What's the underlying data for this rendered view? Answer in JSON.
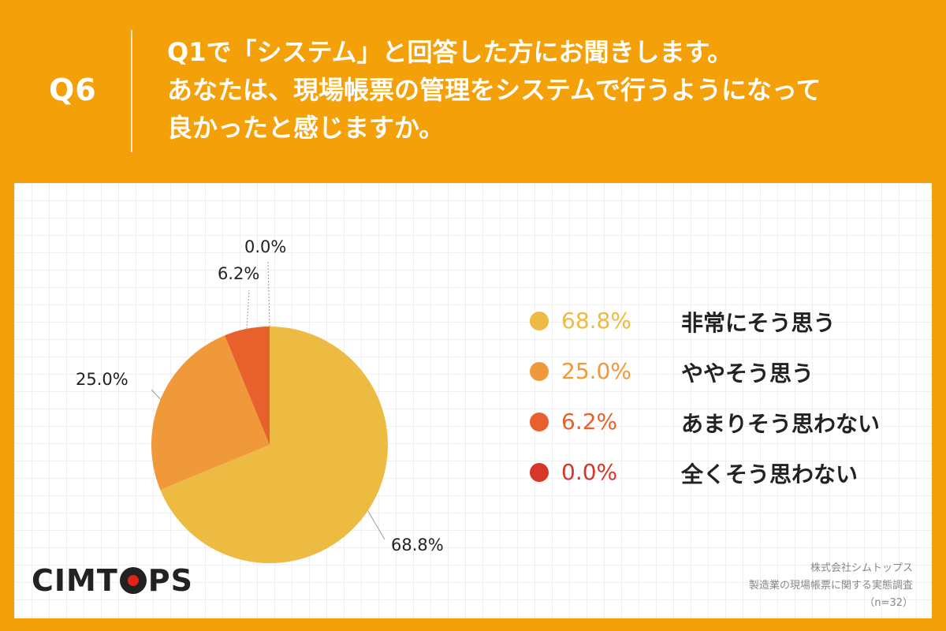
{
  "header": {
    "q_label": "Q6",
    "lines": [
      "Q1で「システム」と回答した方にお聞きします。",
      "あなたは、現場帳票の管理をシステムで行うようになって",
      "良かったと感じますか。"
    ]
  },
  "colors": {
    "background": "#F4A009",
    "slice_very": "#EDBB42",
    "slice_somewhat": "#EF993A",
    "slice_not_much": "#E8602C",
    "slice_not_at_all": "#D9362A"
  },
  "chart_data": {
    "type": "pie",
    "categories": [
      "非常にそう思う",
      "ややそう思う",
      "あまりそう思わない",
      "全くそう思わない"
    ],
    "values": [
      68.8,
      25.0,
      6.2,
      0.0
    ],
    "value_labels": [
      "68.8%",
      "25.0%",
      "6.2%",
      "0.0%"
    ],
    "colors": [
      "#EDBB42",
      "#EF993A",
      "#E8602C",
      "#D9362A"
    ],
    "start": "12 o'clock",
    "direction": "clockwise",
    "legend_position": "right"
  },
  "logo": {
    "text_before": "CIMT",
    "text_after": "PS"
  },
  "footnote": {
    "company": "株式会社シムトップス",
    "survey": "製造業の現場帳票に関する実態調査",
    "sample": "（n=32）"
  }
}
